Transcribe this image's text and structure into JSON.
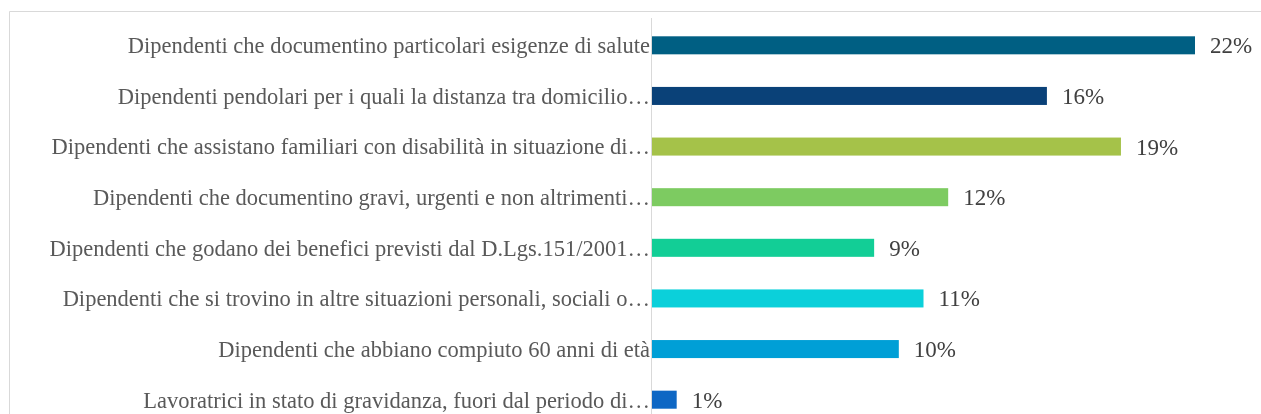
{
  "chart_data": {
    "type": "bar",
    "orientation": "horizontal",
    "categories": [
      "Dipendenti che documentino particolari esigenze di salute",
      "Dipendenti pendolari per i quali la distanza tra domicilio…",
      "Dipendenti che assistano familiari con disabilità in situazione di…",
      "Dipendenti che documentino gravi, urgenti e non altrimenti…",
      "Dipendenti che godano dei benefici previsti dal D.Lgs.151/2001…",
      "Dipendenti che si trovino in altre situazioni personali, sociali o…",
      "Dipendenti che abbiano compiuto 60 anni di età",
      "Lavoratrici in stato di gravidanza, fuori dal periodo di…"
    ],
    "values": [
      22,
      16,
      19,
      12,
      9,
      11,
      10,
      1
    ],
    "colors": [
      "#005f83",
      "#0a4178",
      "#a5c249",
      "#7dcb61",
      "#12ce96",
      "#0bd0da",
      "#009fd6",
      "#0e67c4"
    ],
    "value_labels": [
      "22%",
      "16%",
      "19%",
      "12%",
      "9%",
      "11%",
      "10%",
      "1%"
    ],
    "tick_labels": "y"
  }
}
